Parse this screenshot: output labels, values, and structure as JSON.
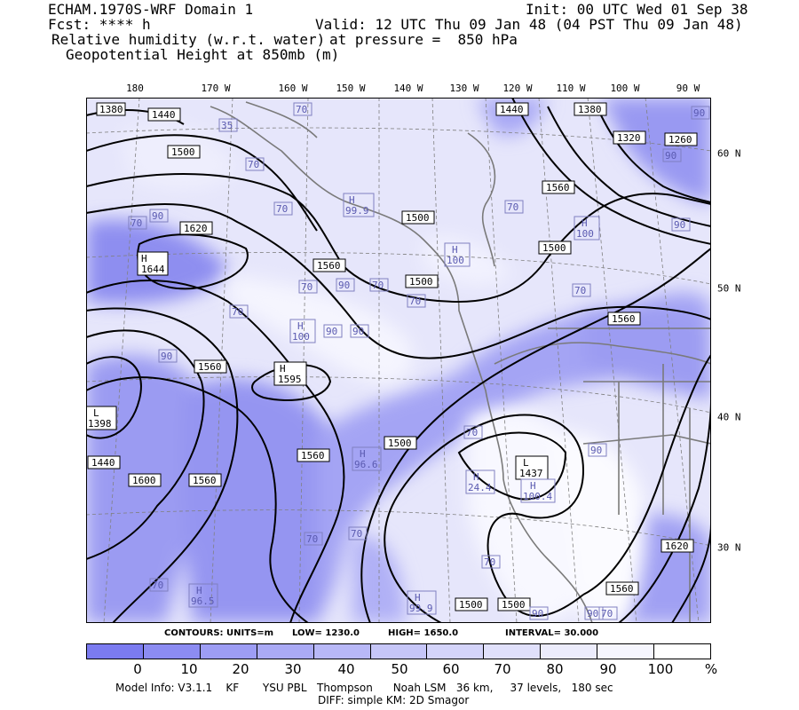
{
  "header": {
    "model_title": "ECHAM.1970S-WRF Domain 1",
    "forecast": "Fcst: **** h",
    "field1": "Relative humidity (w.r.t. water)",
    "field2": "Geopotential Height at 850mb (m)",
    "init": "Init: 00 UTC Wed 01 Sep 38",
    "valid": "Valid: 12 UTC Thu 09 Jan 48 (04 PST Thu 09 Jan 48)",
    "pressure": "at pressure =  850 hPa"
  },
  "axes": {
    "longitude_labels": [
      "180",
      "170 W",
      "160 W",
      "150 W",
      "140 W",
      "130 W",
      "120 W",
      "110 W",
      "100 W",
      "90 W"
    ],
    "latitude_labels": [
      "60 N",
      "50 N",
      "40 N",
      "30 N"
    ]
  },
  "contours": {
    "units": "CONTOURS:  UNITS=m",
    "low": "LOW=   1230.0",
    "high": "HIGH=   1650.0",
    "interval": "INTERVAL=     30.000"
  },
  "contour_labels": [
    "1380",
    "1440",
    "1500",
    "1620",
    "1560",
    "1560",
    "1500",
    "1440",
    "1380",
    "1320",
    "1260",
    "1560",
    "1500",
    "1560",
    "1500",
    "1560",
    "1440",
    "1600",
    "1560",
    "1500",
    "1500",
    "1500",
    "1560",
    "1620"
  ],
  "pressure_centers": [
    {
      "type": "H",
      "value": "1644"
    },
    {
      "type": "H",
      "value": "1595"
    },
    {
      "type": "L",
      "value": "1398"
    },
    {
      "type": "L",
      "value": "1437"
    },
    {
      "type": "H",
      "value": "96.5"
    },
    {
      "type": "H",
      "value": "99.9"
    },
    {
      "type": "H",
      "value": "100.4"
    },
    {
      "type": "H",
      "value": "24.4"
    },
    {
      "type": "H",
      "value": "96.6"
    },
    {
      "type": "H",
      "value": "100"
    },
    {
      "type": "H",
      "value": "99.9"
    },
    {
      "type": "H",
      "value": "100"
    },
    {
      "type": "H",
      "value": "100"
    }
  ],
  "rh_labels": [
    "70",
    "90",
    "70",
    "35",
    "70",
    "70",
    "90",
    "70",
    "90",
    "70",
    "90",
    "70",
    "90",
    "70",
    "70",
    "90",
    "70",
    "90",
    "90",
    "70",
    "70",
    "90",
    "70",
    "70",
    "90",
    "90",
    "70",
    "70"
  ],
  "colorbar": {
    "ticks": [
      "0",
      "10",
      "20",
      "30",
      "40",
      "50",
      "60",
      "70",
      "80",
      "90",
      "100",
      "%"
    ],
    "colors": [
      "#7b7bf0",
      "#8c8cf2",
      "#9d9df4",
      "#aaaaf5",
      "#b8b8f7",
      "#c6c6f8",
      "#d4d4fa",
      "#e0e0fb",
      "#ececfc",
      "#f6f6fe",
      "#ffffff"
    ]
  },
  "footer": {
    "line1": "Model Info: V3.1.1    KF       YSU PBL   Thompson      Noah LSM   36 km,     37 levels,   180 sec",
    "line2": "DIFF: simple KM: 2D Smagor"
  }
}
